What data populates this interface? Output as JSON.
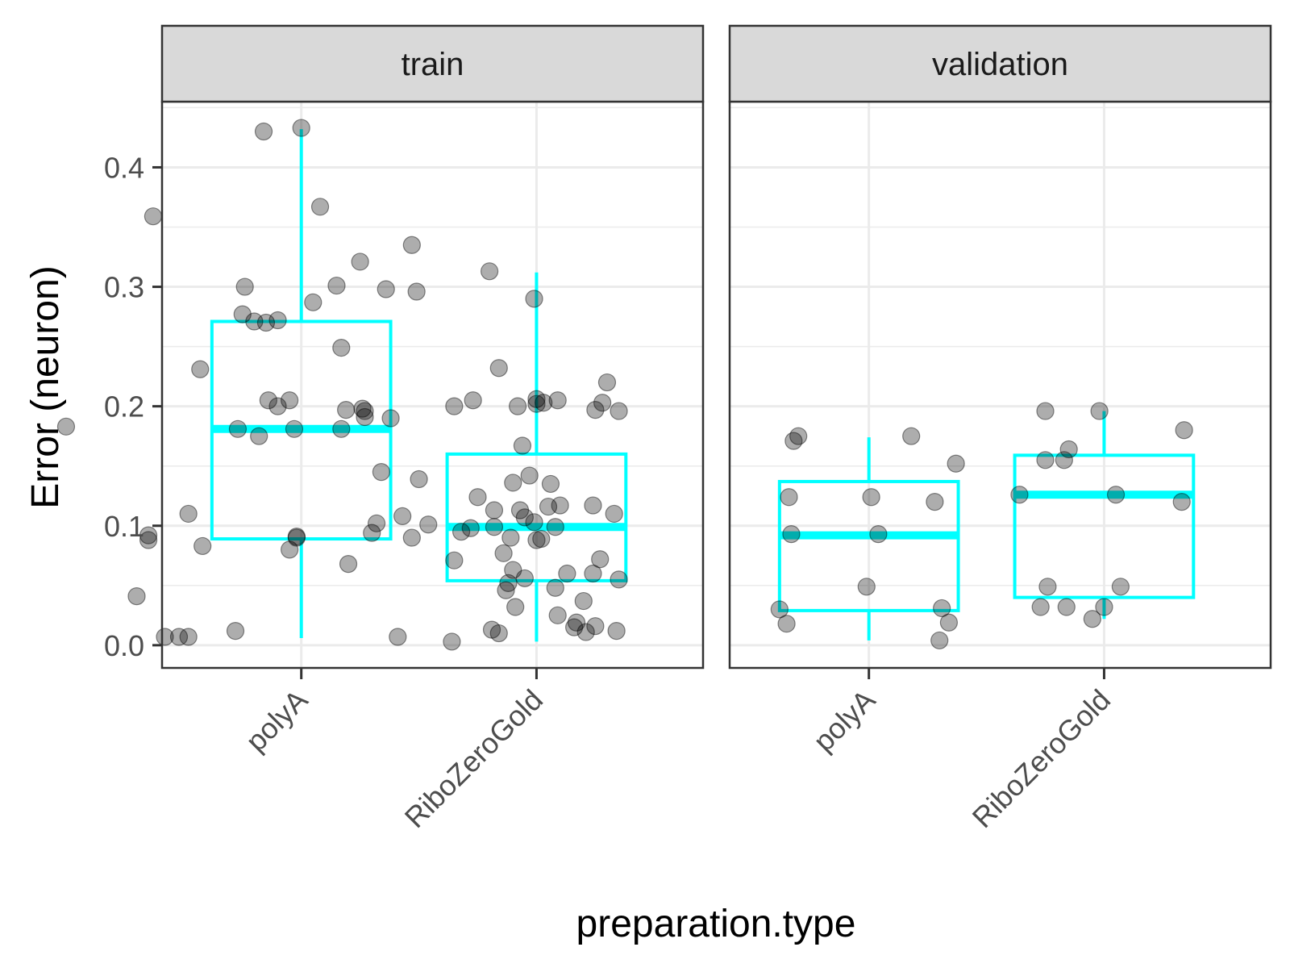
{
  "chart_data": {
    "type": "box",
    "xlabel": "preparation.type",
    "ylabel": "Error (neuron)",
    "ylim": [
      -0.019,
      0.455
    ],
    "yticks": [
      "0.0",
      "0.1",
      "0.2",
      "0.3",
      "0.4"
    ],
    "categories": [
      "polyA",
      "RiboZeroGold"
    ],
    "grid": true,
    "colors": {
      "box": "#00ffff",
      "point": "#000000",
      "panel_border": "#333333",
      "strip_fill": "#d9d9d9",
      "grid": "#ebebeb"
    },
    "panels": [
      {
        "name": "train",
        "boxes": [
          {
            "category": "polyA",
            "whisker_low": 0.006,
            "q1": 0.089,
            "median": 0.181,
            "q3": 0.271,
            "whisker_high": 0.432
          },
          {
            "category": "RiboZeroGold",
            "whisker_low": 0.003,
            "q1": 0.054,
            "median": 0.099,
            "q3": 0.16,
            "whisker_high": 0.312
          }
        ],
        "points": [
          {
            "x": -1.0,
            "y": 0.183
          },
          {
            "x": -0.7,
            "y": 0.041
          },
          {
            "x": -0.63,
            "y": 0.359
          },
          {
            "x": -0.65,
            "y": 0.092
          },
          {
            "x": -0.65,
            "y": 0.088
          },
          {
            "x": -0.58,
            "y": 0.007
          },
          {
            "x": -0.52,
            "y": 0.007
          },
          {
            "x": -0.48,
            "y": 0.007
          },
          {
            "x": -0.43,
            "y": 0.231
          },
          {
            "x": -0.42,
            "y": 0.083
          },
          {
            "x": -0.48,
            "y": 0.11
          },
          {
            "x": -0.28,
            "y": 0.012
          },
          {
            "x": -0.27,
            "y": 0.181
          },
          {
            "x": -0.25,
            "y": 0.277
          },
          {
            "x": -0.24,
            "y": 0.3
          },
          {
            "x": -0.2,
            "y": 0.271
          },
          {
            "x": -0.18,
            "y": 0.175
          },
          {
            "x": -0.15,
            "y": 0.27
          },
          {
            "x": -0.16,
            "y": 0.43
          },
          {
            "x": -0.14,
            "y": 0.205
          },
          {
            "x": -0.1,
            "y": 0.272
          },
          {
            "x": -0.1,
            "y": 0.2
          },
          {
            "x": -0.05,
            "y": 0.205
          },
          {
            "x": -0.05,
            "y": 0.08
          },
          {
            "x": -0.03,
            "y": 0.181
          },
          {
            "x": -0.02,
            "y": 0.091
          },
          {
            "x": -0.02,
            "y": 0.09
          },
          {
            "x": 0.0,
            "y": 0.433
          },
          {
            "x": 0.05,
            "y": 0.287
          },
          {
            "x": 0.08,
            "y": 0.367
          },
          {
            "x": 0.15,
            "y": 0.301
          },
          {
            "x": 0.17,
            "y": 0.249
          },
          {
            "x": 0.17,
            "y": 0.181
          },
          {
            "x": 0.19,
            "y": 0.197
          },
          {
            "x": 0.2,
            "y": 0.068
          },
          {
            "x": 0.26,
            "y": 0.198
          },
          {
            "x": 0.25,
            "y": 0.321
          },
          {
            "x": 0.27,
            "y": 0.191
          },
          {
            "x": 0.27,
            "y": 0.196
          },
          {
            "x": 0.3,
            "y": 0.094
          },
          {
            "x": 0.32,
            "y": 0.102
          },
          {
            "x": 0.34,
            "y": 0.145
          },
          {
            "x": 0.36,
            "y": 0.298
          },
          {
            "x": 0.38,
            "y": 0.19
          },
          {
            "x": 0.41,
            "y": 0.007
          },
          {
            "x": 0.43,
            "y": 0.108
          },
          {
            "x": 0.47,
            "y": 0.09
          },
          {
            "x": 0.49,
            "y": 0.296
          },
          {
            "x": 0.5,
            "y": 0.139
          },
          {
            "x": 0.54,
            "y": 0.101
          },
          {
            "x": 0.47,
            "y": 0.335
          },
          {
            "x": 0.64,
            "y": 0.003
          },
          {
            "x": 0.65,
            "y": 0.071
          },
          {
            "x": 0.65,
            "y": 0.2
          },
          {
            "x": 0.68,
            "y": 0.095
          },
          {
            "x": 0.72,
            "y": 0.098
          },
          {
            "x": 0.73,
            "y": 0.205
          },
          {
            "x": 0.75,
            "y": 0.124
          },
          {
            "x": 0.81,
            "y": 0.013
          },
          {
            "x": 0.8,
            "y": 0.313
          },
          {
            "x": 0.82,
            "y": 0.099
          },
          {
            "x": 0.82,
            "y": 0.113
          },
          {
            "x": 0.84,
            "y": 0.01
          },
          {
            "x": 0.84,
            "y": 0.232
          },
          {
            "x": 0.86,
            "y": 0.077
          },
          {
            "x": 0.87,
            "y": 0.046
          },
          {
            "x": 0.88,
            "y": 0.052
          },
          {
            "x": 0.89,
            "y": 0.09
          },
          {
            "x": 0.9,
            "y": 0.136
          },
          {
            "x": 0.9,
            "y": 0.063
          },
          {
            "x": 0.91,
            "y": 0.032
          },
          {
            "x": 0.92,
            "y": 0.2
          },
          {
            "x": 0.93,
            "y": 0.113
          },
          {
            "x": 0.94,
            "y": 0.167
          },
          {
            "x": 0.95,
            "y": 0.056
          },
          {
            "x": 0.95,
            "y": 0.107
          },
          {
            "x": 0.97,
            "y": 0.142
          },
          {
            "x": 0.99,
            "y": 0.29
          },
          {
            "x": 0.99,
            "y": 0.103
          },
          {
            "x": 1.0,
            "y": 0.088
          },
          {
            "x": 1.02,
            "y": 0.089
          },
          {
            "x": 1.05,
            "y": 0.116
          },
          {
            "x": 1.0,
            "y": 0.206
          },
          {
            "x": 1.0,
            "y": 0.202
          },
          {
            "x": 1.03,
            "y": 0.203
          },
          {
            "x": 1.06,
            "y": 0.135
          },
          {
            "x": 1.08,
            "y": 0.099
          },
          {
            "x": 1.08,
            "y": 0.048
          },
          {
            "x": 1.09,
            "y": 0.025
          },
          {
            "x": 1.09,
            "y": 0.205
          },
          {
            "x": 1.1,
            "y": 0.117
          },
          {
            "x": 1.13,
            "y": 0.06
          },
          {
            "x": 1.16,
            "y": 0.015
          },
          {
            "x": 1.17,
            "y": 0.019
          },
          {
            "x": 1.2,
            "y": 0.037
          },
          {
            "x": 1.21,
            "y": 0.011
          },
          {
            "x": 1.24,
            "y": 0.117
          },
          {
            "x": 1.24,
            "y": 0.06
          },
          {
            "x": 1.25,
            "y": 0.016
          },
          {
            "x": 1.25,
            "y": 0.197
          },
          {
            "x": 1.27,
            "y": 0.072
          },
          {
            "x": 1.28,
            "y": 0.203
          },
          {
            "x": 1.3,
            "y": 0.22
          },
          {
            "x": 1.33,
            "y": 0.11
          },
          {
            "x": 1.34,
            "y": 0.012
          },
          {
            "x": 1.35,
            "y": 0.196
          },
          {
            "x": 1.35,
            "y": 0.055
          }
        ]
      },
      {
        "name": "validation",
        "boxes": [
          {
            "category": "polyA",
            "whisker_low": 0.004,
            "q1": 0.029,
            "median": 0.092,
            "q3": 0.137,
            "whisker_high": 0.174
          },
          {
            "category": "RiboZeroGold",
            "whisker_low": 0.022,
            "q1": 0.04,
            "median": 0.126,
            "q3": 0.159,
            "whisker_high": 0.196
          }
        ],
        "points": [
          {
            "x": -0.38,
            "y": 0.03
          },
          {
            "x": -0.35,
            "y": 0.018
          },
          {
            "x": -0.34,
            "y": 0.124
          },
          {
            "x": -0.33,
            "y": 0.093
          },
          {
            "x": -0.32,
            "y": 0.171
          },
          {
            "x": -0.3,
            "y": 0.175
          },
          {
            "x": -0.01,
            "y": 0.049
          },
          {
            "x": 0.01,
            "y": 0.124
          },
          {
            "x": 0.04,
            "y": 0.093
          },
          {
            "x": 0.18,
            "y": 0.175
          },
          {
            "x": 0.28,
            "y": 0.12
          },
          {
            "x": 0.3,
            "y": 0.004
          },
          {
            "x": 0.31,
            "y": 0.031
          },
          {
            "x": 0.34,
            "y": 0.019
          },
          {
            "x": 0.37,
            "y": 0.152
          },
          {
            "x": 0.64,
            "y": 0.126
          },
          {
            "x": 0.73,
            "y": 0.032
          },
          {
            "x": 0.75,
            "y": 0.196
          },
          {
            "x": 0.75,
            "y": 0.155
          },
          {
            "x": 0.76,
            "y": 0.049
          },
          {
            "x": 0.83,
            "y": 0.155
          },
          {
            "x": 0.84,
            "y": 0.032
          },
          {
            "x": 0.85,
            "y": 0.164
          },
          {
            "x": 0.95,
            "y": 0.022
          },
          {
            "x": 0.98,
            "y": 0.196
          },
          {
            "x": 1.0,
            "y": 0.032
          },
          {
            "x": 1.07,
            "y": 0.049
          },
          {
            "x": 1.05,
            "y": 0.126
          },
          {
            "x": 1.33,
            "y": 0.12
          },
          {
            "x": 1.34,
            "y": 0.18
          }
        ]
      }
    ]
  }
}
